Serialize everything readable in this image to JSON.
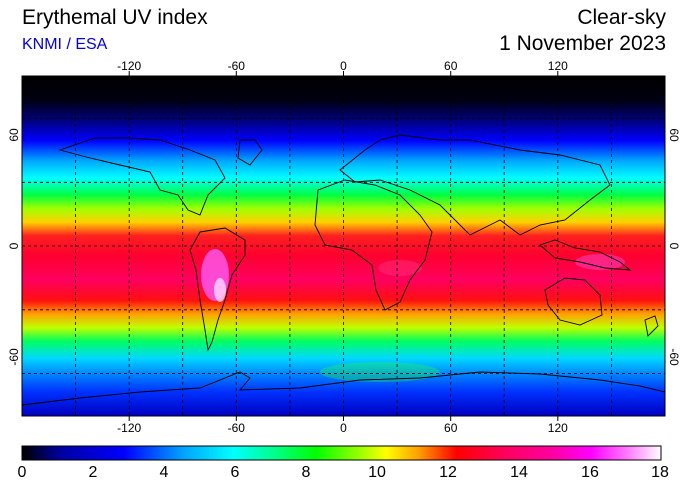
{
  "header": {
    "title": "Erythemal UV index",
    "source": "KNMI / ESA",
    "condition": "Clear-sky",
    "date": "1 November 2023"
  },
  "map": {
    "projection": "equirectangular",
    "lon_range": [
      -180,
      180
    ],
    "lat_range": [
      -80,
      80
    ],
    "lon_ticks": [
      -120,
      -60,
      0,
      60,
      120
    ],
    "lat_ticks": [
      60,
      0,
      -60
    ],
    "lon_tick_labels": [
      "-120",
      "-60",
      "0",
      "60",
      "120"
    ],
    "lat_tick_labels": [
      "60",
      "0",
      "-60"
    ],
    "gridlines": "dashed, every 30 degrees"
  },
  "colorbar": {
    "min": 0,
    "max": 18,
    "ticks": [
      "0",
      "2",
      "4",
      "6",
      "8",
      "10",
      "12",
      "14",
      "16",
      "18"
    ],
    "colors": [
      "#000000",
      "#0000a0",
      "#0000ff",
      "#00a0ff",
      "#00ffff",
      "#00ff80",
      "#00ff00",
      "#a0ff00",
      "#ffff00",
      "#ffa000",
      "#ff0000",
      "#ff0060",
      "#ff00a0",
      "#ff00ff",
      "#ff80ff",
      "#ffd0ff",
      "#ffffff"
    ]
  }
}
